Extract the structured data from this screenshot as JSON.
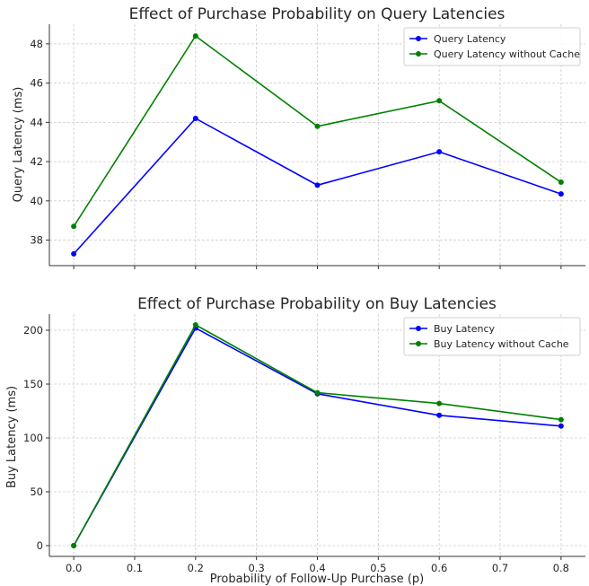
{
  "chart_data": [
    {
      "type": "line",
      "title": "Effect of Purchase Probability on Query Latencies",
      "xlabel": "",
      "ylabel": "Query Latency (ms)",
      "x": [
        0.0,
        0.2,
        0.4,
        0.6,
        0.8
      ],
      "xlim": [
        -0.04,
        0.84
      ],
      "ylim": [
        36.7,
        49.0
      ],
      "xticks": [
        0.0,
        0.1,
        0.2,
        0.3,
        0.4,
        0.5,
        0.6,
        0.7,
        0.8
      ],
      "xticklabels": [],
      "yticks": [
        38,
        40,
        42,
        44,
        46,
        48
      ],
      "yticklabels": [
        "38",
        "40",
        "42",
        "44",
        "46",
        "48"
      ],
      "grid": true,
      "legend_position": "top-right",
      "series": [
        {
          "name": "Query Latency",
          "color": "#0000ff",
          "values": [
            37.3,
            44.2,
            40.8,
            42.5,
            40.35
          ]
        },
        {
          "name": "Query Latency without Cache",
          "color": "#008000",
          "values": [
            38.7,
            48.4,
            43.8,
            45.1,
            40.95
          ]
        }
      ]
    },
    {
      "type": "line",
      "title": "Effect of Purchase Probability on Buy Latencies",
      "xlabel": "Probability of Follow-Up Purchase (p)",
      "ylabel": "Buy Latency (ms)",
      "x": [
        0.0,
        0.2,
        0.4,
        0.6,
        0.8
      ],
      "xlim": [
        -0.04,
        0.84
      ],
      "ylim": [
        -10,
        215
      ],
      "xticks": [
        0.0,
        0.1,
        0.2,
        0.3,
        0.4,
        0.5,
        0.6,
        0.7,
        0.8
      ],
      "xticklabels": [
        "0.0",
        "0.1",
        "0.2",
        "0.3",
        "0.4",
        "0.5",
        "0.6",
        "0.7",
        "0.8"
      ],
      "yticks": [
        0,
        50,
        100,
        150,
        200
      ],
      "yticklabels": [
        "0",
        "50",
        "100",
        "150",
        "200"
      ],
      "grid": true,
      "legend_position": "top-right",
      "series": [
        {
          "name": "Buy Latency",
          "color": "#0000ff",
          "values": [
            0,
            202,
            141,
            121,
            111
          ]
        },
        {
          "name": "Buy Latency without Cache",
          "color": "#008000",
          "values": [
            0,
            205,
            142,
            132,
            117
          ]
        }
      ]
    }
  ]
}
